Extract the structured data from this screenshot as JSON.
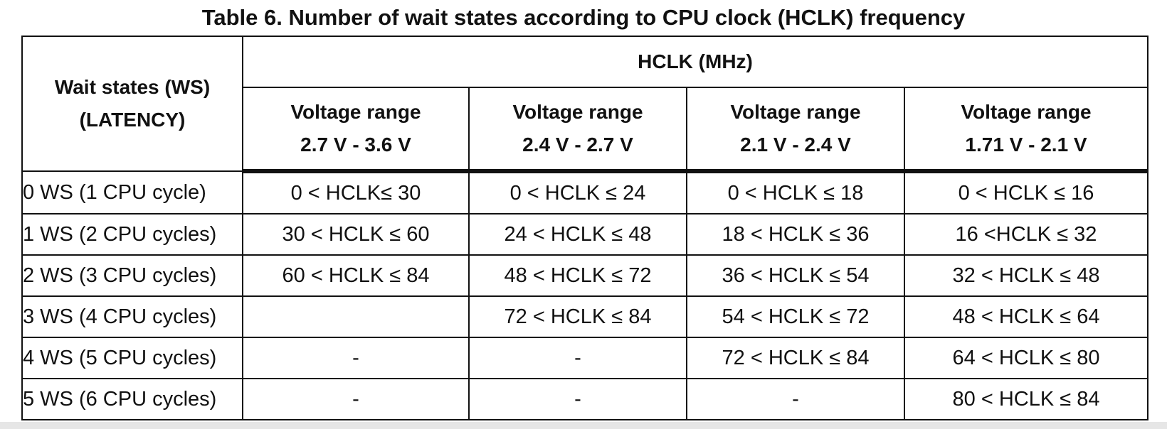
{
  "title": "Table 6. Number of wait states according to CPU clock (HCLK) frequency",
  "table": {
    "row_header": {
      "line1": "Wait states (WS)",
      "line2": "(LATENCY)"
    },
    "group_header": "HCLK (MHz)",
    "columns": [
      {
        "line1": "Voltage range",
        "line2": "2.7 V - 3.6 V"
      },
      {
        "line1": "Voltage range",
        "line2": "2.4 V - 2.7 V"
      },
      {
        "line1": "Voltage range",
        "line2": "2.1 V - 2.4 V"
      },
      {
        "line1": "Voltage range",
        "line2": "1.71 V - 2.1 V"
      }
    ],
    "rows": [
      {
        "ws": "0 WS (1 CPU cycle)",
        "cells": [
          "0 < HCLK≤ 30",
          "0 < HCLK ≤ 24",
          "0 < HCLK ≤ 18",
          "0 < HCLK ≤ 16"
        ]
      },
      {
        "ws": "1 WS (2 CPU cycles)",
        "cells": [
          "30 < HCLK ≤ 60",
          "24 < HCLK ≤ 48",
          "18 < HCLK ≤ 36",
          "16 <HCLK ≤ 32"
        ]
      },
      {
        "ws": "2 WS (3 CPU cycles)",
        "cells": [
          "60 < HCLK ≤ 84",
          "48 < HCLK ≤ 72",
          "36 < HCLK ≤ 54",
          "32 < HCLK ≤ 48"
        ]
      },
      {
        "ws": "3 WS (4 CPU cycles)",
        "cells": [
          "",
          "72 < HCLK ≤ 84",
          "54 < HCLK ≤ 72",
          "48 < HCLK ≤ 64"
        ]
      },
      {
        "ws": "4 WS (5 CPU cycles)",
        "cells": [
          "-",
          "-",
          "72 < HCLK ≤ 84",
          "64 < HCLK ≤ 80"
        ]
      },
      {
        "ws": "5 WS (6 CPU cycles)",
        "cells": [
          "-",
          "-",
          "-",
          "80 < HCLK ≤ 84"
        ]
      }
    ]
  }
}
